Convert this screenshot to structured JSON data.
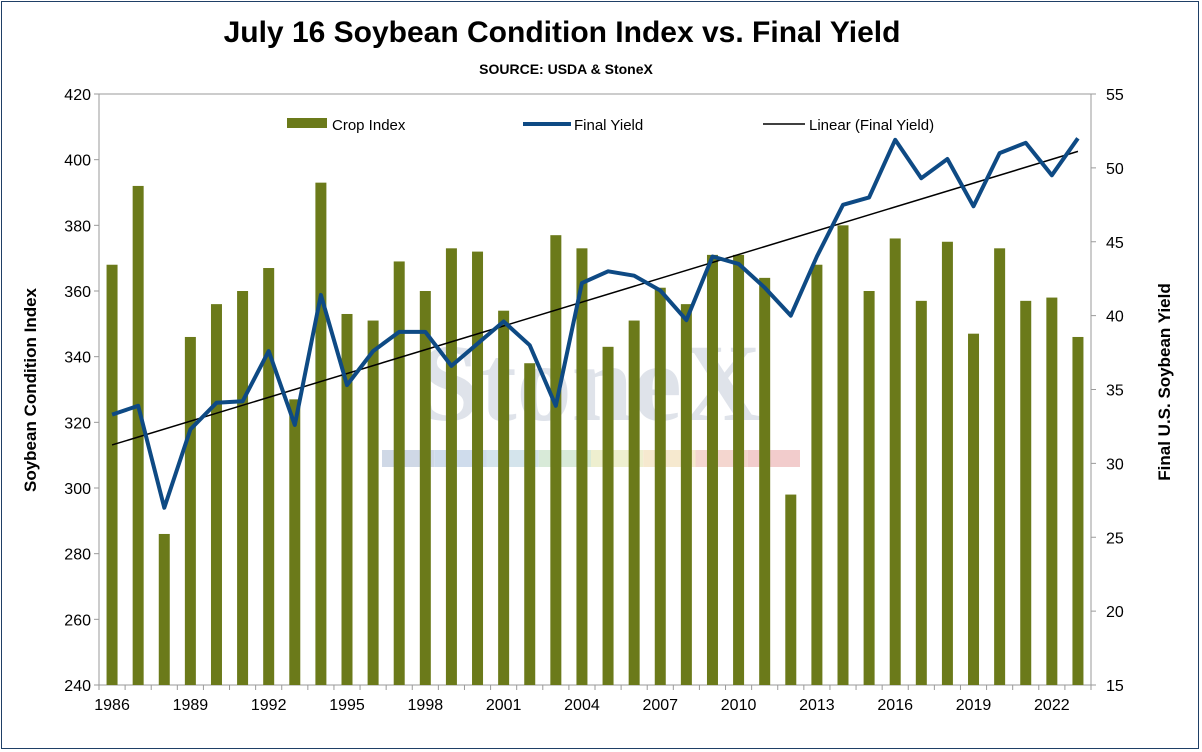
{
  "chart_data": {
    "type": "bar",
    "title": "July 16 Soybean Condition Index vs. Final Yield",
    "subtitle": "SOURCE: USDA & StoneX",
    "ylabel": "Soybean Condition Index",
    "y2label": "Final U.S. Soybean Yield",
    "ylim": [
      240,
      420
    ],
    "y2lim": [
      15,
      55
    ],
    "yticks": [
      240,
      260,
      280,
      300,
      320,
      340,
      360,
      380,
      400,
      420
    ],
    "y2ticks": [
      15,
      20,
      25,
      30,
      35,
      40,
      45,
      50,
      55
    ],
    "x": [
      1986,
      1987,
      1988,
      1989,
      1990,
      1991,
      1992,
      1993,
      1994,
      1995,
      1996,
      1997,
      1998,
      1999,
      2000,
      2001,
      2002,
      2003,
      2004,
      2005,
      2006,
      2007,
      2008,
      2009,
      2010,
      2011,
      2012,
      2013,
      2014,
      2015,
      2016,
      2017,
      2018,
      2019,
      2020,
      2021,
      2022,
      2023
    ],
    "xtick_labels": [
      "1986",
      "1989",
      "1992",
      "1995",
      "1998",
      "2001",
      "2004",
      "2007",
      "2010",
      "2013",
      "2016",
      "2019",
      "2022"
    ],
    "legend_position": "top",
    "grid": false,
    "watermark": "StoneX",
    "series": [
      {
        "name": "Crop Index",
        "type": "bar",
        "axis": "left",
        "color": "#6b7a1a",
        "values": [
          368,
          392,
          286,
          346,
          356,
          360,
          367,
          327,
          393,
          353,
          351,
          369,
          360,
          373,
          372,
          354,
          338,
          377,
          373,
          343,
          351,
          361,
          356,
          371,
          371,
          364,
          298,
          368,
          380,
          360,
          376,
          357,
          375,
          347,
          373,
          357,
          358,
          346
        ]
      },
      {
        "name": "Final Yield",
        "type": "line",
        "axis": "right",
        "color": "#0e4a84",
        "values": [
          33.3,
          33.9,
          27.0,
          32.3,
          34.1,
          34.2,
          37.6,
          32.6,
          41.4,
          35.3,
          37.6,
          38.9,
          38.9,
          36.6,
          38.1,
          39.6,
          38.0,
          33.9,
          42.2,
          43.0,
          42.7,
          41.7,
          39.7,
          44.0,
          43.5,
          41.9,
          40.0,
          44.0,
          47.5,
          48.0,
          51.9,
          49.3,
          50.6,
          47.4,
          51.0,
          51.7,
          49.5,
          52.0
        ]
      },
      {
        "name": "Linear (Final Yield)",
        "type": "trendline",
        "axis": "right",
        "color": "#000000"
      }
    ]
  }
}
